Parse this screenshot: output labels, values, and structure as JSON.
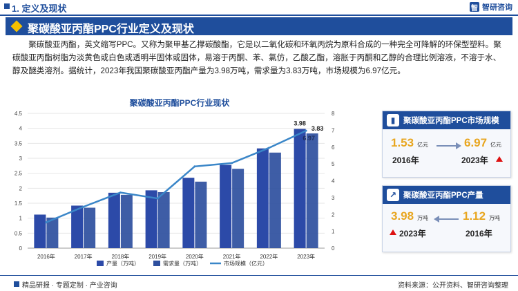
{
  "header": {
    "section_title": "1. 定义及现状",
    "logo_text": "智研咨询",
    "logo_mark": "智"
  },
  "banner": {
    "title": "聚碳酸亚丙酯PPC行业定义及现状"
  },
  "paragraph": "聚碳酸亚丙酯，英文缩写PPC。又称为聚甲基乙撑碳酸酯，它是以二氧化碳和环氧丙烷为原料合成的一种完全可降解的环保型塑料。聚碳酸亚丙酯树脂为淡黄色或白色或透明半固体或固体，易溶于丙酮、苯、氯仿，乙酸乙酯，溶胀于丙酮和乙醇的合理比例溶液，不溶于水、醇及醚类溶剂。据统计，2023年我国聚碳酸亚丙酯产量为3.98万吨，需求量为3.83万吨，市场规模为6.97亿元。",
  "chart_data": {
    "type": "bar",
    "title": "聚碳酸亚丙酯PPC行业现状",
    "categories": [
      "2016年",
      "2017年",
      "2018年",
      "2019年",
      "2020年",
      "2021年",
      "2022年",
      "2023年"
    ],
    "series": [
      {
        "name": "产量（万吨）",
        "type": "bar",
        "axis": "left",
        "values": [
          1.12,
          1.42,
          1.85,
          1.93,
          2.35,
          2.78,
          3.33,
          3.98
        ]
      },
      {
        "name": "需求量（万吨）",
        "type": "bar",
        "axis": "left",
        "values": [
          1.02,
          1.35,
          1.78,
          1.87,
          2.22,
          2.65,
          3.19,
          3.83
        ]
      },
      {
        "name": "市场规模（亿元）",
        "type": "line",
        "axis": "right",
        "values": [
          1.53,
          2.45,
          3.3,
          2.95,
          4.85,
          5.05,
          5.95,
          6.97
        ]
      }
    ],
    "ylim_left": [
      0,
      4.5
    ],
    "yticks_left": [
      "0",
      "0.5",
      "1",
      "1.5",
      "2",
      "2.5",
      "3",
      "3.5",
      "4",
      "4.5"
    ],
    "ylim_right": [
      0,
      8
    ],
    "yticks_right": [
      "0",
      "1",
      "2",
      "3",
      "4",
      "5",
      "6",
      "7",
      "8"
    ],
    "data_labels": {
      "prod_2023": "3.98",
      "demand_2023": "3.83",
      "market_2023": "6.97"
    },
    "legend_position": "bottom",
    "colors": {
      "prod": "#2c4aa8",
      "demand": "#2e4f9e",
      "line": "#3a86c8"
    }
  },
  "cards": {
    "market": {
      "title": "聚碳酸亚丙酯PPC市场规模",
      "left_value": "1.53",
      "left_unit": "亿元",
      "left_year": "2016年",
      "right_value": "6.97",
      "right_unit": "亿元",
      "right_year": "2023年",
      "icon": "chart-bar-icon"
    },
    "output": {
      "title": "聚碳酸亚丙酯PPC产量",
      "left_value": "3.98",
      "left_unit": "万吨",
      "left_year": "2023年",
      "right_value": "1.12",
      "right_unit": "万吨",
      "right_year": "2016年",
      "icon": "chart-growth-icon"
    }
  },
  "footer": {
    "left": "精品研报 · 专题定制 · 产业咨询",
    "right": "资料来源：公开资料、智研咨询整理"
  }
}
